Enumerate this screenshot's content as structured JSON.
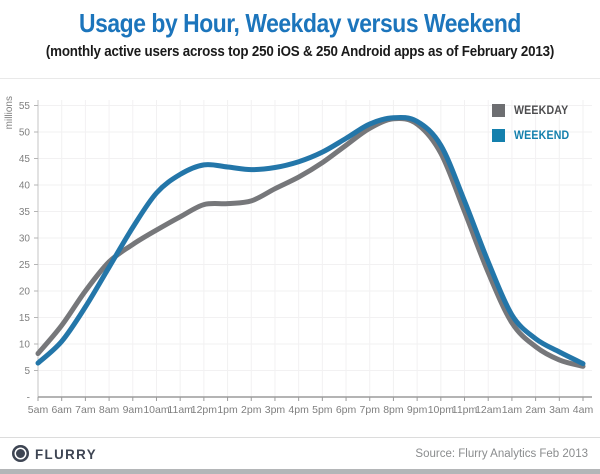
{
  "title": "Usage by Hour, Weekday versus Weekend",
  "subtitle": "(monthly active users across top 250 iOS & 250 Android apps as of February 2013)",
  "colors": {
    "title": "#1c75bc",
    "weekday_line": "#76777a",
    "weekend_line": "#2376a9",
    "legend_weekday_swatch": "#6d6e71",
    "legend_weekend_swatch": "#1480ad",
    "legend_weekday_text": "#4d4d4f",
    "legend_weekend_text": "#1480ad",
    "axis_text": "#7f7f7f",
    "axis_line": "#9b9b9b",
    "grid_line": "#f2f1f2",
    "brand": "#3e4553"
  },
  "chart_data": {
    "type": "line",
    "title": "Usage by Hour, Weekday versus Weekend",
    "subtitle": "(monthly active users across top 250 iOS & 250 Android apps as of February 2013)",
    "x": [
      "5am",
      "6am",
      "7am",
      "8am",
      "9am",
      "10am",
      "11am",
      "12pm",
      "1pm",
      "2pm",
      "3pm",
      "4pm",
      "5pm",
      "6pm",
      "7pm",
      "8pm",
      "9pm",
      "10pm",
      "11pm",
      "12am",
      "1am",
      "2am",
      "3am",
      "4am"
    ],
    "xlabel": "",
    "ylabel": "millions",
    "ylim": [
      0,
      55
    ],
    "ytick_step": 5,
    "zero_tick_label": "-",
    "grid": true,
    "legend_position": "top-right",
    "series": [
      {
        "name": "WEEKDAY",
        "values": [
          8.2,
          13.5,
          20,
          25.5,
          28.8,
          31.5,
          34,
          36.3,
          36.5,
          37,
          39.3,
          41.5,
          44.2,
          47.5,
          50.7,
          52.5,
          51.5,
          46,
          35,
          23.5,
          14,
          9.5,
          7,
          5.8
        ]
      },
      {
        "name": "WEEKEND",
        "values": [
          6.4,
          10.5,
          17,
          24.5,
          32,
          38.5,
          42,
          43.8,
          43.4,
          42.9,
          43.3,
          44.4,
          46.2,
          48.8,
          51.5,
          52.7,
          52,
          47.5,
          37,
          25.5,
          15.5,
          11,
          8.5,
          6.3
        ]
      }
    ]
  },
  "footer": {
    "brand": "FLURRY",
    "source": "Source: Flurry Analytics Feb 2013"
  }
}
